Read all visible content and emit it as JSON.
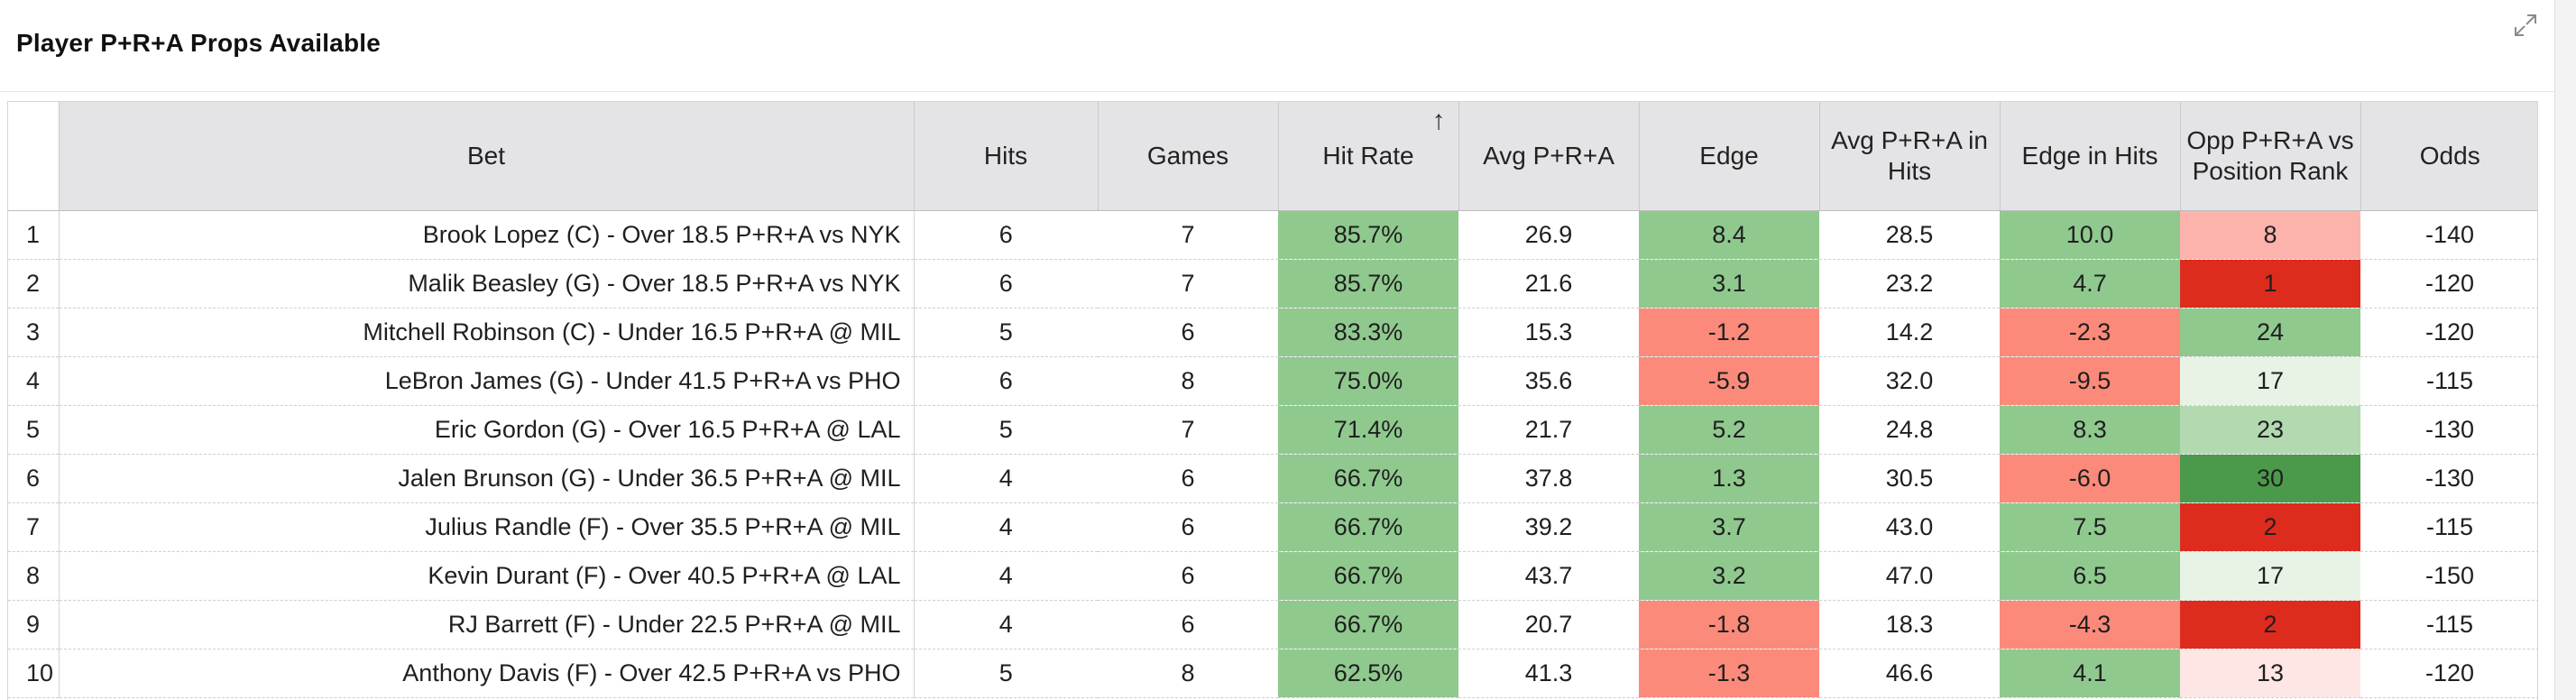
{
  "panel": {
    "title": "Player P+R+A Props Available",
    "expand_icon": "expand-diagonal-icon"
  },
  "colors": {
    "green_hit": "#8fc98e",
    "green_mid": "#b3d9b0",
    "green_light": "#e8f3e6",
    "green_dark": "#4b9a4b",
    "red_edge": "#fb8a7b",
    "red_rank_dark": "#dd2b1e",
    "pink_rank": "#fbb3ab",
    "pink_rank_light": "#fde6e4"
  },
  "table": {
    "columns": [
      "",
      "Bet",
      "Hits",
      "Games",
      "Hit Rate",
      "Avg P+R+A",
      "Edge",
      "Avg P+R+A in Hits",
      "Edge in Hits",
      "Opp P+R+A vs Position Rank",
      "Odds"
    ],
    "sort_indicator": "↑",
    "sort_icon": "sort-up-arrow-icon",
    "rows": [
      {
        "idx": "1",
        "bet": "Brook Lopez (C) - Over 18.5 P+R+A vs NYK",
        "hits": "6",
        "games": "7",
        "hit_rate": "85.7%",
        "avg": "26.9",
        "edge": "8.4",
        "avg_hits": "28.5",
        "edge_hits": "10.0",
        "opp_rank": "8",
        "odds": "-140",
        "edge_color": "#8fc98e",
        "edge_hits_color": "#8fc98e",
        "rank_color": "#fbb3ab",
        "rank_text_color": "#1f1f1f"
      },
      {
        "idx": "2",
        "bet": "Malik Beasley (G) - Over 18.5 P+R+A vs NYK",
        "hits": "6",
        "games": "7",
        "hit_rate": "85.7%",
        "avg": "21.6",
        "edge": "3.1",
        "avg_hits": "23.2",
        "edge_hits": "4.7",
        "opp_rank": "1",
        "odds": "-120",
        "edge_color": "#8fc98e",
        "edge_hits_color": "#8fc98e",
        "rank_color": "#dd2b1e",
        "rank_text_color": "#1f1f1f"
      },
      {
        "idx": "3",
        "bet": "Mitchell Robinson (C) - Under 16.5 P+R+A @ MIL",
        "hits": "5",
        "games": "6",
        "hit_rate": "83.3%",
        "avg": "15.3",
        "edge": "-1.2",
        "avg_hits": "14.2",
        "edge_hits": "-2.3",
        "opp_rank": "24",
        "odds": "-120",
        "edge_color": "#fb8a7b",
        "edge_hits_color": "#fb8a7b",
        "rank_color": "#8fc98e",
        "rank_text_color": "#1f1f1f"
      },
      {
        "idx": "4",
        "bet": "LeBron James (G) - Under 41.5 P+R+A vs PHO",
        "hits": "6",
        "games": "8",
        "hit_rate": "75.0%",
        "avg": "35.6",
        "edge": "-5.9",
        "avg_hits": "32.0",
        "edge_hits": "-9.5",
        "opp_rank": "17",
        "odds": "-115",
        "edge_color": "#fb8a7b",
        "edge_hits_color": "#fb8a7b",
        "rank_color": "#e8f3e6",
        "rank_text_color": "#1f1f1f"
      },
      {
        "idx": "5",
        "bet": "Eric Gordon (G) - Over 16.5 P+R+A @ LAL",
        "hits": "5",
        "games": "7",
        "hit_rate": "71.4%",
        "avg": "21.7",
        "edge": "5.2",
        "avg_hits": "24.8",
        "edge_hits": "8.3",
        "opp_rank": "23",
        "odds": "-130",
        "edge_color": "#8fc98e",
        "edge_hits_color": "#8fc98e",
        "rank_color": "#b3d9b0",
        "rank_text_color": "#1f1f1f"
      },
      {
        "idx": "6",
        "bet": "Jalen Brunson (G) - Under 36.5 P+R+A @ MIL",
        "hits": "4",
        "games": "6",
        "hit_rate": "66.7%",
        "avg": "37.8",
        "edge": "1.3",
        "avg_hits": "30.5",
        "edge_hits": "-6.0",
        "opp_rank": "30",
        "odds": "-130",
        "edge_color": "#8fc98e",
        "edge_hits_color": "#fb8a7b",
        "rank_color": "#4b9a4b",
        "rank_text_color": "#1f1f1f"
      },
      {
        "idx": "7",
        "bet": "Julius Randle (F) - Over 35.5 P+R+A @ MIL",
        "hits": "4",
        "games": "6",
        "hit_rate": "66.7%",
        "avg": "39.2",
        "edge": "3.7",
        "avg_hits": "43.0",
        "edge_hits": "7.5",
        "opp_rank": "2",
        "odds": "-115",
        "edge_color": "#8fc98e",
        "edge_hits_color": "#8fc98e",
        "rank_color": "#dd2b1e",
        "rank_text_color": "#1f1f1f"
      },
      {
        "idx": "8",
        "bet": "Kevin Durant (F) - Over 40.5 P+R+A @ LAL",
        "hits": "4",
        "games": "6",
        "hit_rate": "66.7%",
        "avg": "43.7",
        "edge": "3.2",
        "avg_hits": "47.0",
        "edge_hits": "6.5",
        "opp_rank": "17",
        "odds": "-150",
        "edge_color": "#8fc98e",
        "edge_hits_color": "#8fc98e",
        "rank_color": "#e8f3e6",
        "rank_text_color": "#1f1f1f"
      },
      {
        "idx": "9",
        "bet": "RJ Barrett (F) - Under 22.5 P+R+A @ MIL",
        "hits": "4",
        "games": "6",
        "hit_rate": "66.7%",
        "avg": "20.7",
        "edge": "-1.8",
        "avg_hits": "18.3",
        "edge_hits": "-4.3",
        "opp_rank": "2",
        "odds": "-115",
        "edge_color": "#fb8a7b",
        "edge_hits_color": "#fb8a7b",
        "rank_color": "#dd2b1e",
        "rank_text_color": "#1f1f1f"
      },
      {
        "idx": "10",
        "bet": "Anthony Davis (F) - Over 42.5 P+R+A vs PHO",
        "hits": "5",
        "games": "8",
        "hit_rate": "62.5%",
        "avg": "41.3",
        "edge": "-1.3",
        "avg_hits": "46.6",
        "edge_hits": "4.1",
        "opp_rank": "13",
        "odds": "-120",
        "edge_color": "#fb8a7b",
        "edge_hits_color": "#8fc98e",
        "rank_color": "#fde6e4",
        "rank_text_color": "#1f1f1f"
      }
    ]
  }
}
